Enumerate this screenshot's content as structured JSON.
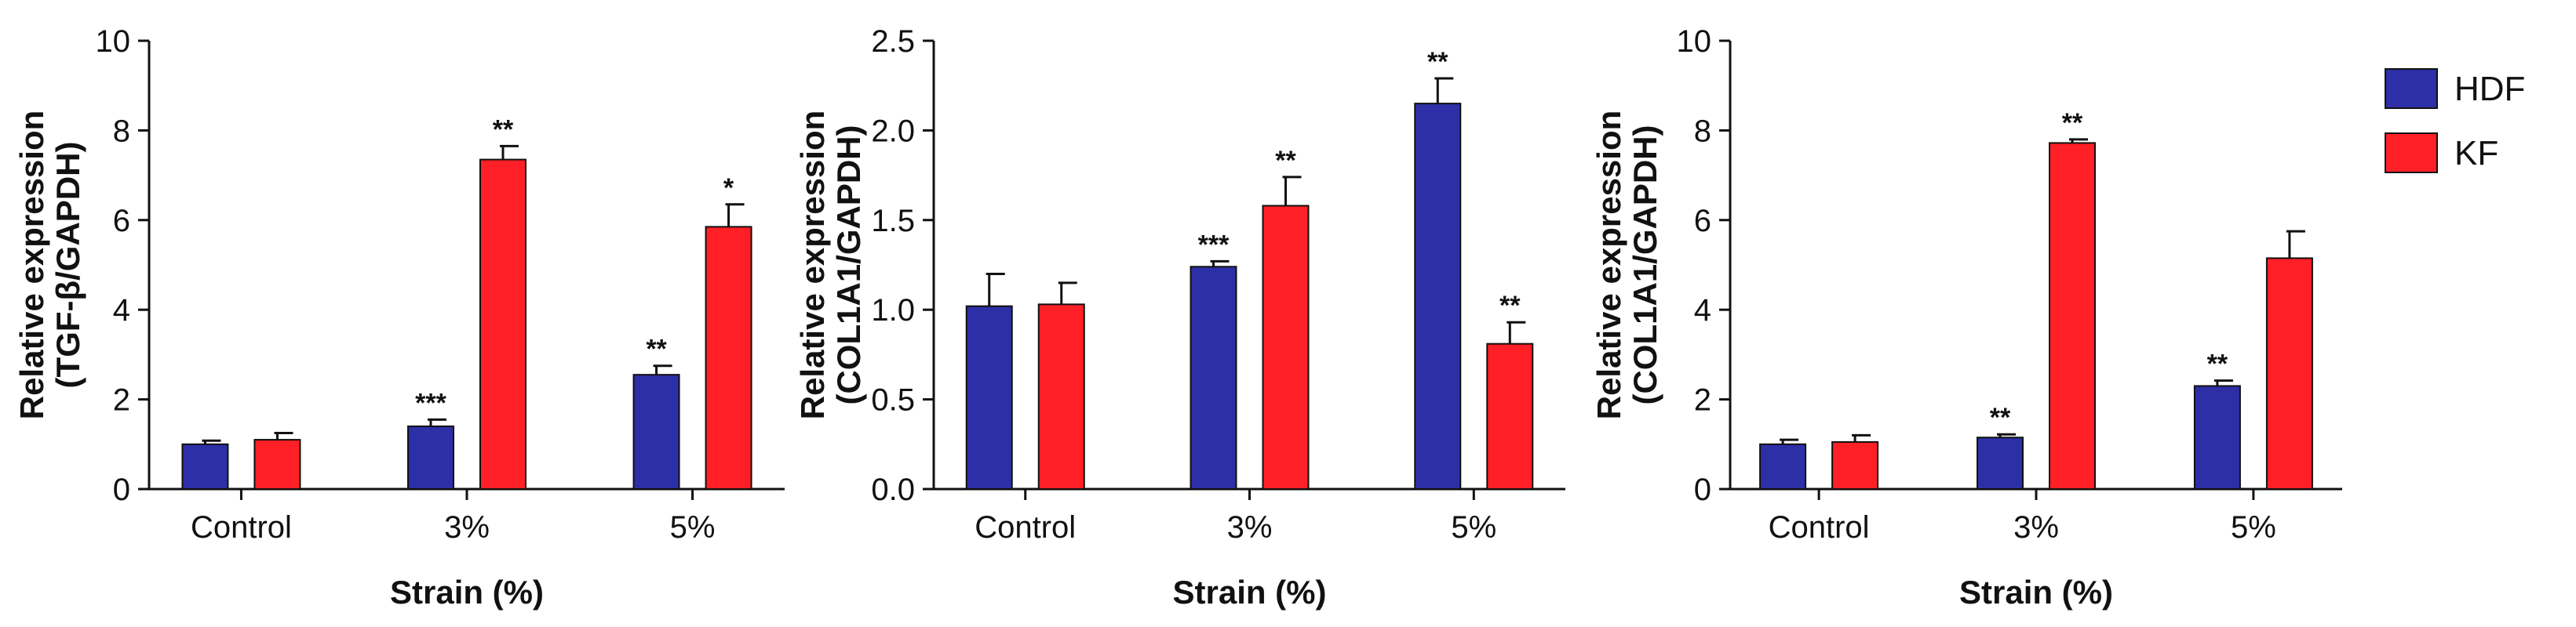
{
  "legend": [
    {
      "name": "HDF",
      "color": "#2d2fa6"
    },
    {
      "name": "KF",
      "color": "#ff1f26"
    }
  ],
  "chart_data": [
    {
      "type": "bar",
      "categories": [
        "Control",
        "3%",
        "5%"
      ],
      "series": [
        {
          "name": "HDF",
          "values": [
            1.0,
            1.4,
            2.55
          ],
          "errors": [
            0.08,
            0.15,
            0.2
          ],
          "significance": [
            "",
            "***",
            "**"
          ]
        },
        {
          "name": "KF",
          "values": [
            1.1,
            7.35,
            5.85
          ],
          "errors": [
            0.15,
            0.3,
            0.5
          ],
          "significance": [
            "",
            "**",
            "*"
          ]
        }
      ],
      "xlabel": "Strain (%)",
      "ylabel_line1": "Relative expression",
      "ylabel_line2": "(TGF-β/GAPDH)",
      "ylim": [
        0,
        10
      ],
      "yticks": [
        0,
        2,
        4,
        6,
        8,
        10
      ],
      "ytick_labels": [
        "0",
        "2",
        "4",
        "6",
        "8",
        "10"
      ]
    },
    {
      "type": "bar",
      "categories": [
        "Control",
        "3%",
        "5%"
      ],
      "series": [
        {
          "name": "HDF",
          "values": [
            1.02,
            1.24,
            2.15
          ],
          "errors": [
            0.18,
            0.03,
            0.14
          ],
          "significance": [
            "",
            "***",
            "**"
          ]
        },
        {
          "name": "KF",
          "values": [
            1.03,
            1.58,
            0.81
          ],
          "errors": [
            0.12,
            0.16,
            0.12
          ],
          "significance": [
            "",
            "**",
            "**"
          ]
        }
      ],
      "xlabel": "Strain (%)",
      "ylabel_line1": "Relative expression",
      "ylabel_line2": "(COL1A1/GAPDH)",
      "ylim": [
        0,
        2.5
      ],
      "yticks": [
        0,
        0.5,
        1.0,
        1.5,
        2.0,
        2.5
      ],
      "ytick_labels": [
        "0.0",
        "0.5",
        "1.0",
        "1.5",
        "2.0",
        "2.5"
      ]
    },
    {
      "type": "bar",
      "categories": [
        "Control",
        "3%",
        "5%"
      ],
      "series": [
        {
          "name": "HDF",
          "values": [
            1.0,
            1.15,
            2.3
          ],
          "errors": [
            0.1,
            0.07,
            0.12
          ],
          "significance": [
            "",
            "**",
            "**"
          ]
        },
        {
          "name": "KF",
          "values": [
            1.05,
            7.72,
            5.15
          ],
          "errors": [
            0.15,
            0.08,
            0.6
          ],
          "significance": [
            "",
            "**",
            ""
          ]
        }
      ],
      "xlabel": "Strain (%)",
      "ylabel_line1": "Relative expression",
      "ylabel_line2": "(COL1A1/GAPDH)",
      "ylim": [
        0,
        10
      ],
      "yticks": [
        0,
        2,
        4,
        6,
        8,
        10
      ],
      "ytick_labels": [
        "0",
        "2",
        "4",
        "6",
        "8",
        "10"
      ]
    }
  ]
}
